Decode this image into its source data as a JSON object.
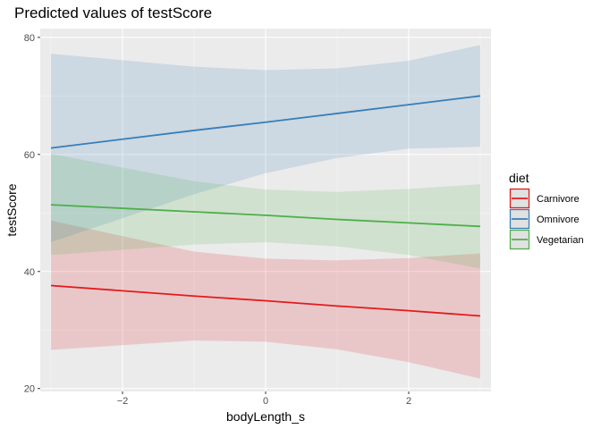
{
  "chart_data": {
    "type": "line",
    "title": "Predicted values of testScore",
    "xlabel": "bodyLength_s",
    "ylabel": "testScore",
    "xlim": [
      -3.15,
      3.15
    ],
    "ylim": [
      19.5,
      81.5
    ],
    "x_ticks": [
      -2,
      0,
      2
    ],
    "y_ticks": [
      20,
      40,
      60,
      80
    ],
    "grid": true,
    "legend": {
      "title": "diet",
      "position": "right"
    },
    "series": [
      {
        "name": "Carnivore",
        "color": "#e41a1c",
        "x": [
          -3,
          -1,
          0,
          1,
          2,
          3
        ],
        "y": [
          37.6,
          35.8,
          35.0,
          34.1,
          33.3,
          32.4
        ],
        "ci_low": [
          26.6,
          28.2,
          28.0,
          26.7,
          24.5,
          21.7
        ],
        "ci_high": [
          48.7,
          43.4,
          42.2,
          41.9,
          42.3,
          43.1
        ]
      },
      {
        "name": "Omnivore",
        "color": "#377eb8",
        "x": [
          -3,
          -1,
          0,
          1,
          2,
          3
        ],
        "y": [
          61.1,
          64.1,
          65.5,
          67.0,
          68.5,
          70.0
        ],
        "ci_low": [
          45.0,
          53.2,
          56.8,
          59.4,
          61.0,
          61.3
        ],
        "ci_high": [
          77.2,
          75.0,
          74.4,
          74.7,
          76.0,
          78.7
        ]
      },
      {
        "name": "Vegetarian",
        "color": "#4daf4a",
        "x": [
          -3,
          -1,
          0,
          1,
          2,
          3
        ],
        "y": [
          51.4,
          50.2,
          49.6,
          48.9,
          48.3,
          47.7
        ],
        "ci_low": [
          42.8,
          44.6,
          45.0,
          44.3,
          42.8,
          40.5
        ],
        "ci_high": [
          60.1,
          55.4,
          54.0,
          53.6,
          54.1,
          54.9
        ]
      }
    ]
  }
}
